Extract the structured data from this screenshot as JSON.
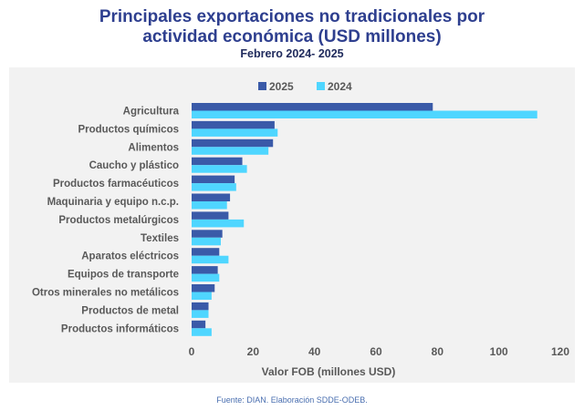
{
  "title_line1": "Principales exportaciones no tradicionales por",
  "title_line2": "actividad económica (USD millones)",
  "subtitle": "Febrero 2024- 2025",
  "source": "Fuente: DIAN. Elaboración SDDE-ODEB.",
  "colors": {
    "s2025": "#3a5aa8",
    "s2024": "#4fd6ff"
  },
  "chart_data": {
    "type": "bar",
    "orientation": "horizontal",
    "categories": [
      "Agricultura",
      "Productos químicos",
      "Alimentos",
      "Caucho y plástico",
      "Productos farmacéuticos",
      "Maquinaria y equipo n.c.p.",
      "Productos metalúrgicos",
      "Textiles",
      "Aparatos eléctricos",
      "Equipos de transporte",
      "Otros minerales no metálicos",
      "Productos de metal",
      "Productos informáticos"
    ],
    "series": [
      {
        "name": "2025",
        "values": [
          78.5,
          27,
          26.5,
          16.5,
          14,
          12.5,
          12,
          10,
          9,
          8.5,
          7.5,
          5.5,
          4.5
        ]
      },
      {
        "name": "2024",
        "values": [
          112.5,
          28,
          25,
          18,
          14.5,
          11.5,
          17,
          9.5,
          12,
          9,
          6.5,
          5.5,
          6.5
        ]
      }
    ],
    "xlabel": "Valor FOB (millones USD)",
    "xlim": [
      0,
      120
    ],
    "xticks": [
      0,
      20,
      40,
      60,
      80,
      100,
      120
    ],
    "legend": "top-center",
    "grid": false
  }
}
